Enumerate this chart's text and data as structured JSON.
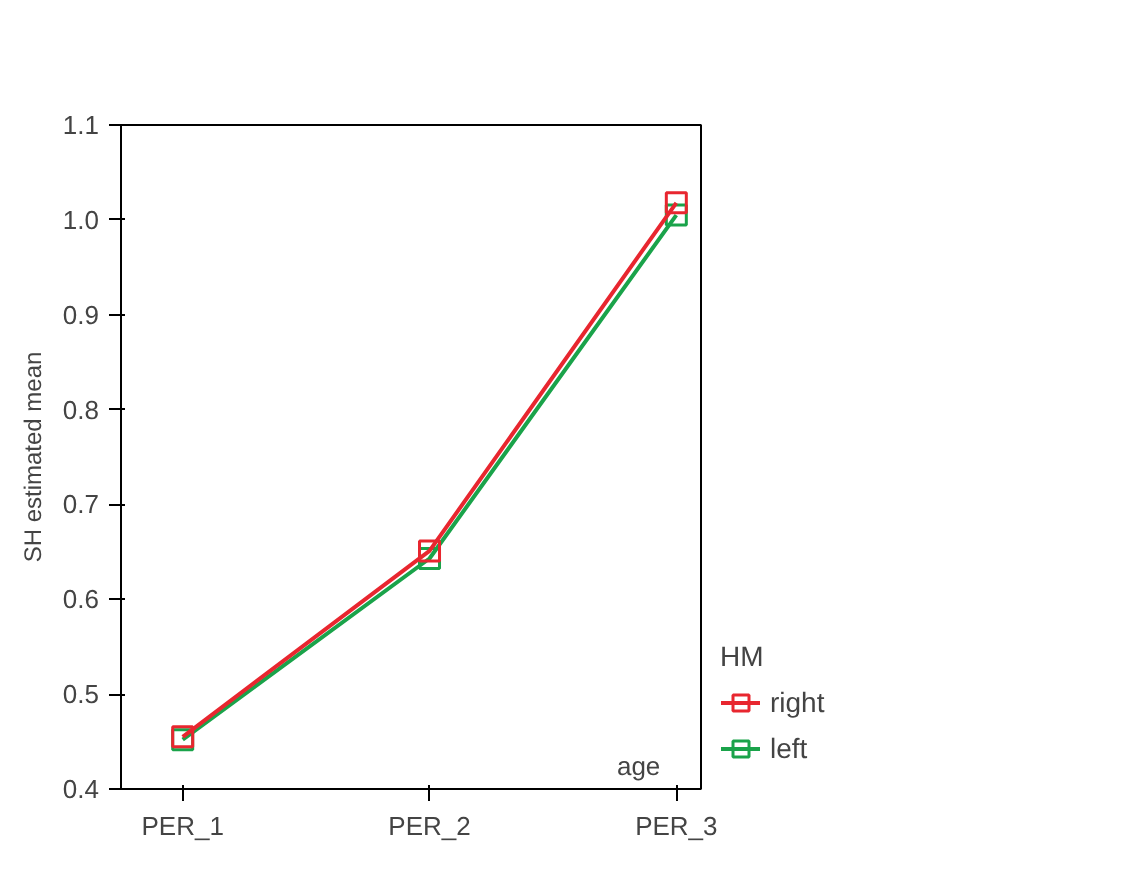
{
  "chart_data": {
    "type": "line",
    "ylabel": "SH estimated mean",
    "xlabel": "age",
    "legend_title": "HM",
    "categories": [
      "PER_1",
      "PER_2",
      "PER_3"
    ],
    "series": [
      {
        "name": "right",
        "color": "#e8262f",
        "values": [
          0.455,
          0.651,
          1.018
        ]
      },
      {
        "name": "left",
        "color": "#1aa34a",
        "values": [
          0.452,
          0.643,
          1.005
        ]
      }
    ],
    "ylim": [
      0.4,
      1.1
    ],
    "yticks": [
      0.4,
      0.5,
      0.6,
      0.7,
      0.8,
      0.9,
      {
        "value": 1.0,
        "label": "1.0"
      },
      1.1
    ],
    "marker": "square",
    "legend": "right",
    "grid": false
  }
}
